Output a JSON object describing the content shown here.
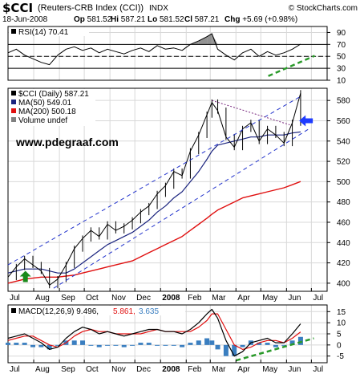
{
  "header": {
    "symbol": "$CCI",
    "name": "(Reuters-CRB Index (CCI))",
    "exchange": "INDX",
    "brand": "© StockCharts.com",
    "date": "18-Jun-2008",
    "quote": [
      {
        "label": "Op",
        "value": "581.52"
      },
      {
        "label": "Hi",
        "value": "587.21"
      },
      {
        "label": "Lo",
        "value": "581.52"
      },
      {
        "label": "Cl",
        "value": "587.21"
      },
      {
        "label": "Chg",
        "value": "+5.69 (+0.98%)",
        "direction": "up"
      }
    ]
  },
  "watermark": "www.pdegraaf.com",
  "colors": {
    "price": "#000000",
    "ma50": "#1a237e",
    "ma200": "#e01010",
    "macd": "#000000",
    "signal": "#e01010",
    "histogram": "#3a7ec0",
    "channel": "#2233cc",
    "trendline_up": "#2a9a2a",
    "arrow_green": "#1a8a1a",
    "arrow_blue": "#1f3cff",
    "rsi_fill": "#808080",
    "grid": "#d8d8d8"
  },
  "chart_data": [
    {
      "id": "rsi",
      "type": "line",
      "legend": [
        {
          "text": "RSI(14) 70.41",
          "color": "#000000"
        }
      ],
      "indicator": "RSI(14)",
      "last_value": 70.41,
      "ylim": [
        10,
        100
      ],
      "yticks": [
        10,
        30,
        50,
        70,
        90
      ],
      "reference_lines": [
        30,
        50,
        70
      ],
      "x": [
        "2007-07-01",
        "2007-07-11",
        "2007-07-21",
        "2007-07-31",
        "2007-08-10",
        "2007-08-20",
        "2007-08-30",
        "2007-09-09",
        "2007-09-19",
        "2007-09-29",
        "2007-10-09",
        "2007-10-19",
        "2007-10-29",
        "2007-11-08",
        "2007-11-18",
        "2007-11-28",
        "2007-12-08",
        "2007-12-18",
        "2007-12-28",
        "2008-01-07",
        "2008-01-17",
        "2008-01-27",
        "2008-02-06",
        "2008-02-16",
        "2008-02-26",
        "2008-03-03",
        "2008-03-10",
        "2008-03-20",
        "2008-03-30",
        "2008-04-09",
        "2008-04-19",
        "2008-04-29",
        "2008-05-09",
        "2008-05-19",
        "2008-05-29",
        "2008-06-08",
        "2008-06-18"
      ],
      "values": [
        56,
        62,
        52,
        46,
        40,
        36,
        52,
        62,
        66,
        60,
        64,
        56,
        62,
        58,
        54,
        60,
        64,
        58,
        68,
        62,
        64,
        60,
        70,
        76,
        83,
        88,
        62,
        52,
        44,
        56,
        62,
        50,
        58,
        52,
        56,
        62,
        70.41
      ]
    },
    {
      "id": "price",
      "type": "line",
      "legend": [
        {
          "text": "$CCI (Daily) 587.21",
          "color": "#000000"
        },
        {
          "text": "MA(50) 549.01",
          "color": "#1a237e"
        },
        {
          "text": "MA(200) 500.18",
          "color": "#e01010"
        },
        {
          "text": "Volume undef",
          "color": "#808080"
        }
      ],
      "ylim": [
        392,
        592
      ],
      "yticks": [
        400,
        420,
        440,
        460,
        480,
        500,
        520,
        540,
        560,
        580
      ],
      "x": [
        "2007-07-01",
        "2007-07-11",
        "2007-07-21",
        "2007-07-31",
        "2007-08-10",
        "2007-08-20",
        "2007-08-30",
        "2007-09-09",
        "2007-09-19",
        "2007-09-29",
        "2007-10-09",
        "2007-10-19",
        "2007-10-29",
        "2007-11-08",
        "2007-11-18",
        "2007-11-28",
        "2007-12-08",
        "2007-12-18",
        "2007-12-28",
        "2008-01-07",
        "2008-01-17",
        "2008-01-27",
        "2008-02-06",
        "2008-02-16",
        "2008-02-26",
        "2008-03-03",
        "2008-03-10",
        "2008-03-20",
        "2008-03-30",
        "2008-04-09",
        "2008-04-19",
        "2008-04-29",
        "2008-05-09",
        "2008-05-19",
        "2008-05-29",
        "2008-06-08",
        "2008-06-18"
      ],
      "series": [
        {
          "name": "$CCI (Daily)",
          "key": "price",
          "values": [
            406,
            416,
            424,
            418,
            412,
            398,
            404,
            418,
            434,
            444,
            452,
            446,
            458,
            452,
            456,
            462,
            470,
            476,
            488,
            496,
            510,
            506,
            530,
            546,
            566,
            578,
            570,
            544,
            534,
            552,
            558,
            540,
            552,
            546,
            538,
            558,
            587.21
          ]
        },
        {
          "name": "MA(50)",
          "key": "ma50",
          "values": [
            410,
            412,
            414,
            414,
            414,
            412,
            410,
            410,
            414,
            420,
            426,
            432,
            438,
            442,
            446,
            450,
            456,
            462,
            470,
            476,
            484,
            490,
            500,
            510,
            522,
            530,
            536,
            538,
            540,
            542,
            544,
            544,
            546,
            546,
            546,
            548,
            549.01
          ]
        },
        {
          "name": "MA(200)",
          "key": "ma200",
          "values": [
            400,
            402,
            404,
            405,
            406,
            406,
            406,
            407,
            408,
            410,
            412,
            414,
            416,
            418,
            420,
            422,
            426,
            430,
            434,
            438,
            442,
            446,
            452,
            458,
            464,
            468,
            472,
            476,
            480,
            484,
            486,
            488,
            490,
            492,
            494,
            497,
            500.18
          ]
        }
      ],
      "trendlines": [
        {
          "name": "channel-upper",
          "kind": "dashed",
          "points": [
            [
              "2007-07-01",
              418
            ],
            [
              "2008-06-18",
              584
            ]
          ]
        },
        {
          "name": "channel-lower",
          "kind": "dashed",
          "points": [
            [
              "2007-08-25",
              395
            ],
            [
              "2008-06-28",
              552
            ]
          ]
        },
        {
          "name": "wedge-top",
          "kind": "dotted",
          "points": [
            [
              "2008-03-03",
              580
            ],
            [
              "2008-06-05",
              556
            ]
          ]
        }
      ],
      "markers": [
        {
          "name": "green-up-arrow",
          "date": "2007-07-22",
          "value": 405
        },
        {
          "name": "blue-left-arrow",
          "date": "2008-06-25",
          "value": 560
        }
      ]
    },
    {
      "id": "macd",
      "type": "line",
      "legend": [
        {
          "text": "MACD(12,26,9) 9.496,",
          "color": "#000000"
        },
        {
          "text": "5.861,",
          "color": "#e01010"
        },
        {
          "text": "3.635",
          "color": "#3a7ec0"
        }
      ],
      "ylim": [
        -8,
        18
      ],
      "yticks": [
        -5,
        0,
        5,
        10,
        15
      ],
      "x": [
        "2007-07-01",
        "2007-07-11",
        "2007-07-21",
        "2007-07-31",
        "2007-08-10",
        "2007-08-20",
        "2007-08-30",
        "2007-09-09",
        "2007-09-19",
        "2007-09-29",
        "2007-10-09",
        "2007-10-19",
        "2007-10-29",
        "2007-11-08",
        "2007-11-18",
        "2007-11-28",
        "2007-12-08",
        "2007-12-18",
        "2007-12-28",
        "2008-01-07",
        "2008-01-17",
        "2008-01-27",
        "2008-02-06",
        "2008-02-16",
        "2008-02-26",
        "2008-03-03",
        "2008-03-10",
        "2008-03-20",
        "2008-03-30",
        "2008-04-09",
        "2008-04-19",
        "2008-04-29",
        "2008-05-09",
        "2008-05-19",
        "2008-05-29",
        "2008-06-08",
        "2008-06-18"
      ],
      "series": [
        {
          "name": "MACD(12,26,9)",
          "key": "macd",
          "values": [
            3,
            4,
            5,
            3,
            1,
            -2,
            -1,
            3,
            6,
            8,
            7,
            5,
            6,
            5,
            4,
            5,
            6,
            7,
            7,
            6,
            6,
            5,
            7,
            10,
            14,
            16,
            12,
            2,
            -5,
            -3,
            1,
            2,
            3,
            1,
            1,
            5,
            9.496
          ]
        },
        {
          "name": "Signal",
          "key": "signal",
          "values": [
            2,
            3,
            4,
            4,
            2,
            0,
            -1,
            1,
            4,
            6,
            7,
            6,
            6,
            5,
            5,
            5,
            5,
            6,
            7,
            6,
            6,
            6,
            6,
            8,
            11,
            14,
            14,
            7,
            0,
            -2,
            -1,
            1,
            2,
            2,
            1,
            3,
            5.861
          ]
        },
        {
          "name": "Histogram",
          "key": "histogram",
          "values": [
            1,
            1,
            1,
            -1,
            -1,
            -2,
            0,
            2,
            2,
            2,
            0,
            -1,
            0,
            0,
            -1,
            0,
            1,
            1,
            0,
            0,
            0,
            -1,
            1,
            2,
            3,
            2,
            -2,
            -5,
            -5,
            -1,
            2,
            1,
            1,
            -1,
            0,
            2,
            3.635
          ]
        }
      ],
      "trendlines": [
        {
          "name": "macd-support",
          "kind": "dashed-green",
          "points": [
            [
              "2008-04-01",
              -7
            ],
            [
              "2008-07-04",
              3
            ]
          ]
        }
      ]
    }
  ],
  "x_axis": {
    "months": [
      {
        "label": "Jul",
        "date": "2007-07-01"
      },
      {
        "label": "Aug",
        "date": "2007-08-01"
      },
      {
        "label": "Sep",
        "date": "2007-09-01"
      },
      {
        "label": "Oct",
        "date": "2007-10-01"
      },
      {
        "label": "Nov",
        "date": "2007-11-01"
      },
      {
        "label": "Dec",
        "date": "2007-12-01"
      },
      {
        "label": "2008",
        "date": "2008-01-01",
        "bold": true
      },
      {
        "label": "Feb",
        "date": "2008-02-01"
      },
      {
        "label": "Mar",
        "date": "2008-03-01"
      },
      {
        "label": "Apr",
        "date": "2008-04-01"
      },
      {
        "label": "May",
        "date": "2008-05-01"
      },
      {
        "label": "Jun",
        "date": "2008-06-01"
      },
      {
        "label": "Jul",
        "date": "2008-07-01"
      }
    ]
  },
  "rsi_trendline": {
    "name": "rsi-support",
    "points": [
      [
        "2008-05-10",
        17
      ],
      [
        "2008-07-05",
        51
      ]
    ]
  }
}
